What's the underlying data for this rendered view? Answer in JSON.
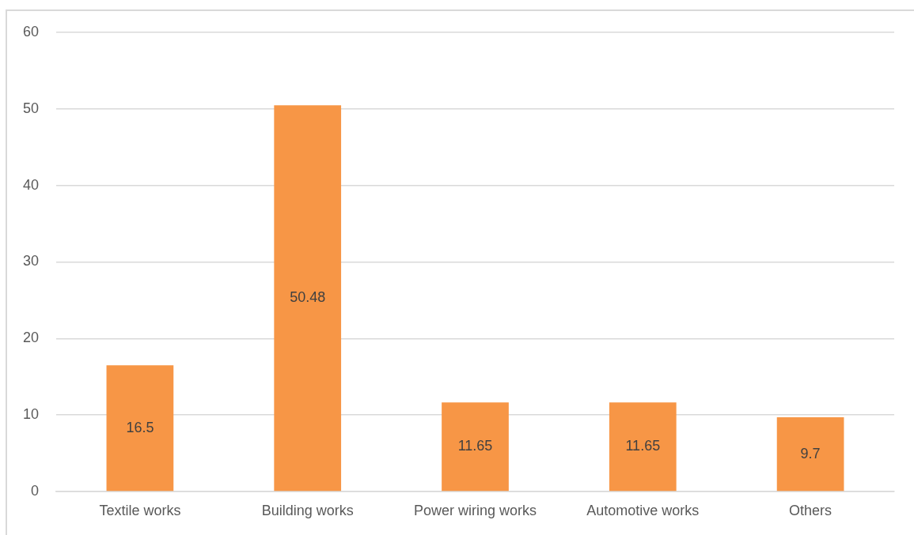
{
  "chart_data": {
    "type": "bar",
    "categories": [
      "Textile works",
      "Building works",
      "Power wiring works",
      "Automotive works",
      "Others"
    ],
    "values": [
      16.5,
      50.48,
      11.65,
      11.65,
      9.7
    ],
    "color": "#f79646",
    "ylim": [
      0,
      60
    ],
    "yticks": [
      0,
      10,
      20,
      30,
      40,
      50,
      60
    ],
    "grid": "y",
    "data_labels": true
  }
}
